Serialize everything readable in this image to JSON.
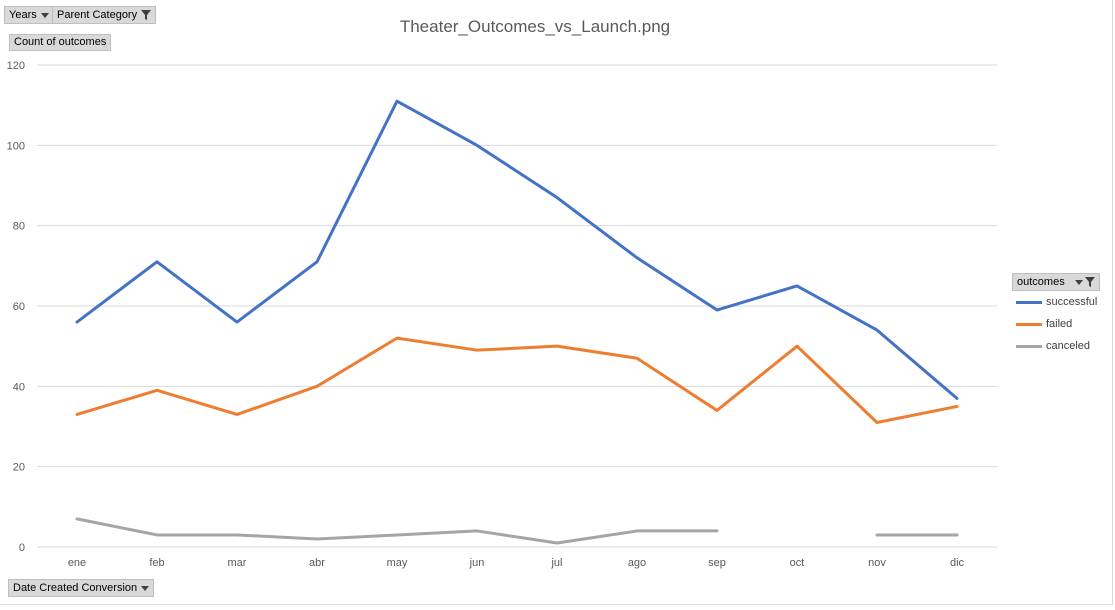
{
  "toolbar": {
    "years_label": "Years",
    "category_label": "Parent Category",
    "value_field_label": "Count of outcomes",
    "axis_field_label": "Date Created Conversion",
    "legend_field_label": "outcomes"
  },
  "chart_data": {
    "type": "line",
    "title": "Theater_Outcomes_vs_Launch.png",
    "categories": [
      "ene",
      "feb",
      "mar",
      "abr",
      "may",
      "jun",
      "jul",
      "ago",
      "sep",
      "oct",
      "nov",
      "dic"
    ],
    "ylim": [
      0,
      120
    ],
    "yticks": [
      0,
      20,
      40,
      60,
      80,
      100,
      120
    ],
    "grid": true,
    "legend_position": "right",
    "series": [
      {
        "name": "successful",
        "color": "#4472c4",
        "values": [
          56,
          71,
          56,
          71,
          111,
          100,
          87,
          72,
          59,
          65,
          54,
          37
        ]
      },
      {
        "name": "failed",
        "color": "#ed7d31",
        "values": [
          33,
          39,
          33,
          40,
          52,
          49,
          50,
          47,
          34,
          50,
          31,
          35
        ]
      },
      {
        "name": "canceled",
        "color": "#a5a5a5",
        "values": [
          7,
          3,
          3,
          2,
          3,
          4,
          1,
          4,
          4,
          null,
          3,
          3
        ]
      }
    ]
  }
}
